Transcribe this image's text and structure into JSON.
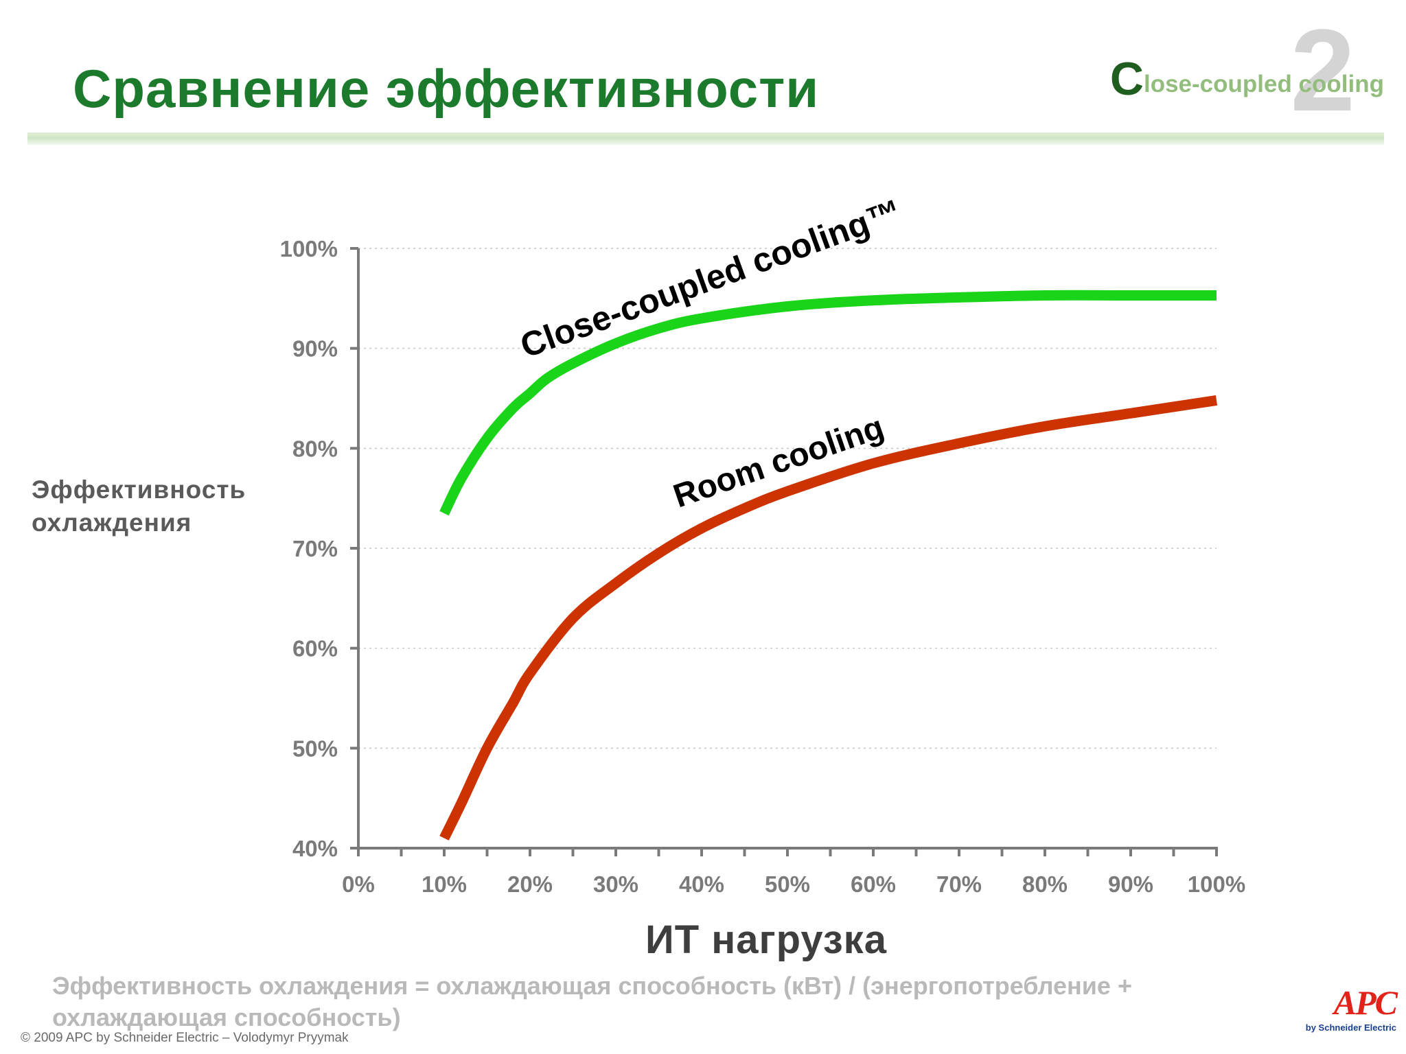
{
  "slide": {
    "title": "Сравнение эффективности",
    "brand": {
      "first_letter": "C",
      "rest": "lose-coupled cooling",
      "digit": "2"
    },
    "footer": {
      "formula": "Эффективность охлаждения = охлаждающая способность (кВт) / (энергопотребление + охлаждающая способность)",
      "copyright": "© 2009 APC by Schneider Electric – Volodymyr Pryymak",
      "logo_text": "APC",
      "logo_sub": "by Schneider Electric"
    },
    "colors": {
      "title": "#1b7a2c",
      "close_coupled_line": "#1ad41a",
      "room_line": "#cc3300"
    }
  },
  "chart_data": {
    "type": "line",
    "xlabel": "ИТ нагрузка",
    "ylabel": "Эффективность охлаждения",
    "xlim": [
      0,
      100
    ],
    "ylim": [
      40,
      100
    ],
    "x_ticks": [
      "0%",
      "10%",
      "20%",
      "30%",
      "40%",
      "50%",
      "60%",
      "70%",
      "80%",
      "90%",
      "100%"
    ],
    "y_ticks": [
      "40%",
      "50%",
      "60%",
      "70%",
      "80%",
      "90%",
      "100%"
    ],
    "grid": "horizontal dotted",
    "series": [
      {
        "name": "Close-coupled cooling™",
        "color": "#1ad41a",
        "x": [
          10,
          12,
          15,
          18,
          20,
          22,
          25,
          30,
          35,
          40,
          50,
          60,
          70,
          80,
          90,
          100
        ],
        "y": [
          73.5,
          77,
          81,
          84,
          85.5,
          87,
          88.5,
          90.5,
          92,
          93,
          94.2,
          94.8,
          95.1,
          95.3,
          95.3,
          95.3
        ]
      },
      {
        "name": "Room cooling",
        "color": "#cc3300",
        "x": [
          10,
          12,
          15,
          18,
          20,
          25,
          30,
          35,
          40,
          45,
          50,
          60,
          70,
          80,
          90,
          100
        ],
        "y": [
          41,
          44.5,
          50,
          54.5,
          57.5,
          63,
          66.5,
          69.5,
          72,
          74,
          75.7,
          78.5,
          80.5,
          82.2,
          83.5,
          84.8
        ]
      }
    ]
  }
}
